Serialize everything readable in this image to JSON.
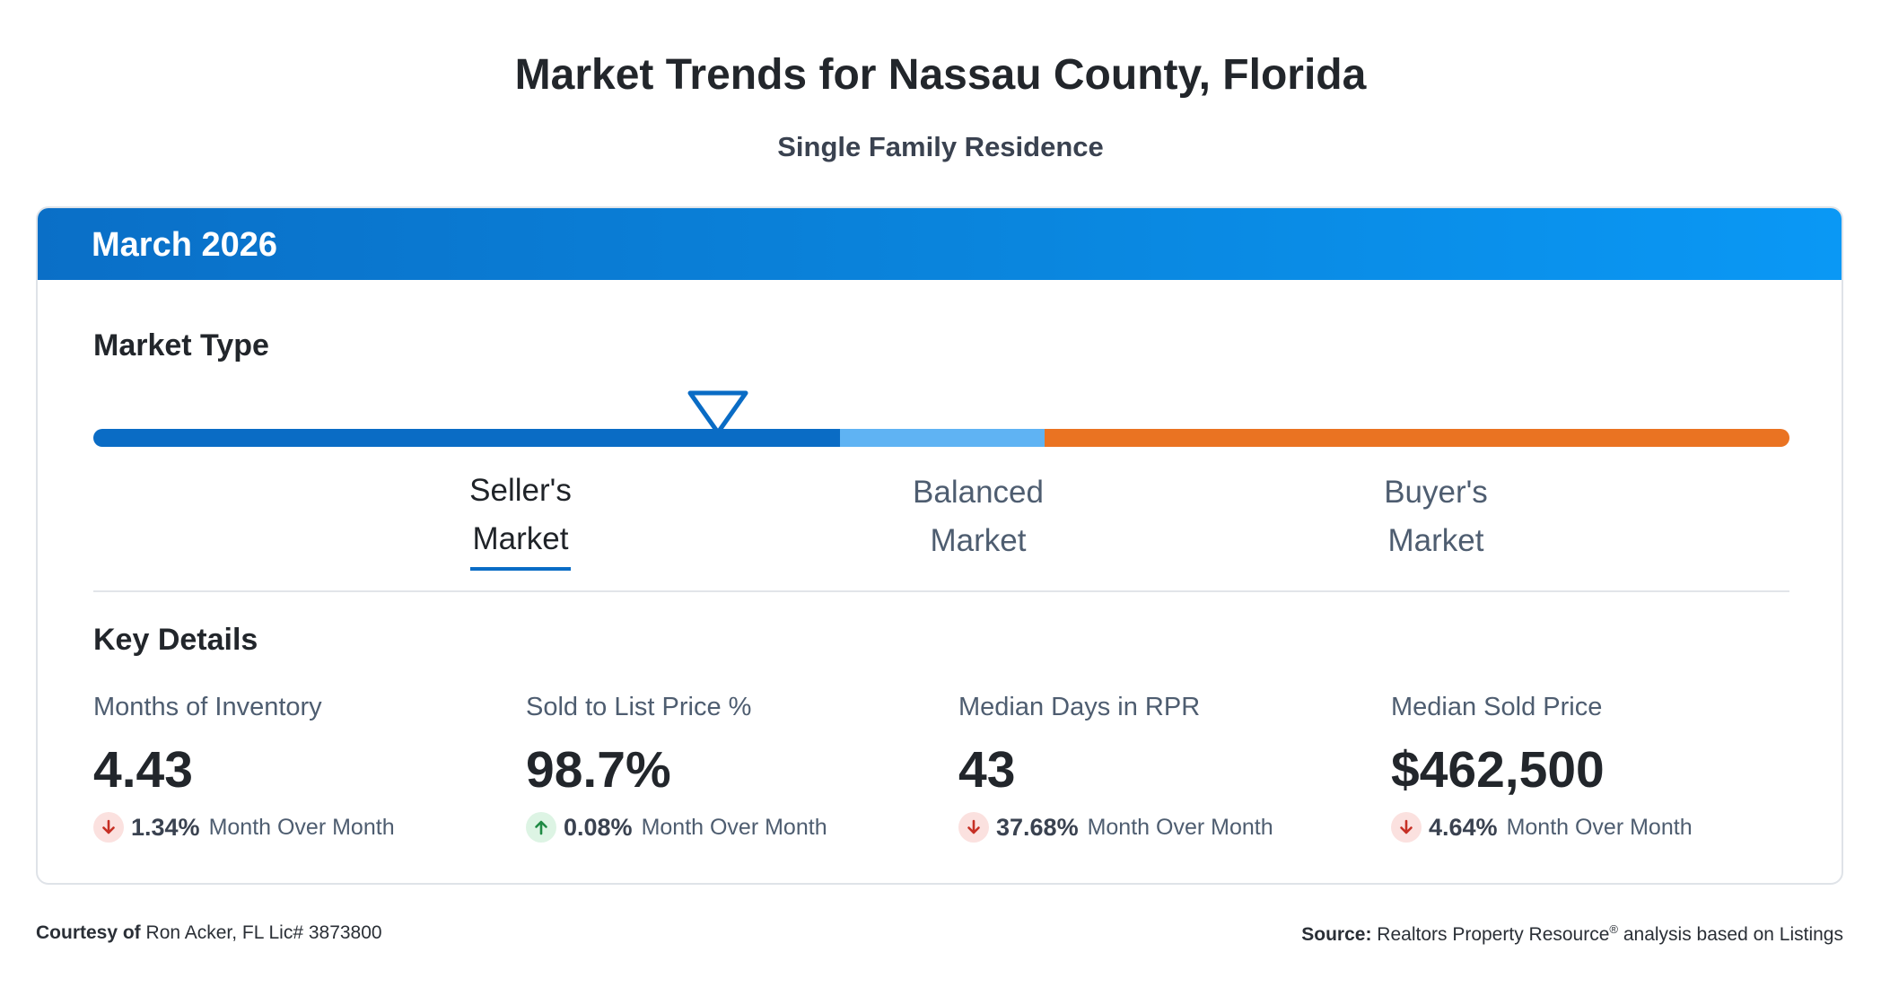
{
  "page": {
    "title": "Market Trends for Nassau County, Florida",
    "subtitle": "Single Family Residence"
  },
  "card": {
    "period": "March 2026",
    "header_gradient": [
      "#0a6fc7",
      "#0a98f5"
    ]
  },
  "market_type": {
    "title": "Market Type",
    "segments": [
      {
        "name": "Seller's Market",
        "color": "#0a6cc5"
      },
      {
        "name": "Balanced Market",
        "color": "#5fb3f3"
      },
      {
        "name": "Buyer's Market",
        "color": "#ea7322"
      }
    ],
    "labels": {
      "seller_line1": "Seller's",
      "seller_line2": "Market",
      "balanced_line1": "Balanced",
      "balanced_line2": "Market",
      "buyer_line1": "Buyer's",
      "buyer_line2": "Market"
    },
    "selected": "Seller's Market",
    "indicator_position_fraction": 0.368
  },
  "key_details": {
    "title": "Key Details",
    "metrics": [
      {
        "label": "Months of Inventory",
        "value": "4.43",
        "change_pct": "1.34%",
        "direction": "down",
        "change_text": "Month Over Month"
      },
      {
        "label": "Sold to List Price %",
        "value": "98.7%",
        "change_pct": "0.08%",
        "direction": "up",
        "change_text": "Month Over Month"
      },
      {
        "label": "Median Days in RPR",
        "value": "43",
        "change_pct": "37.68%",
        "direction": "down",
        "change_text": "Month Over Month"
      },
      {
        "label": "Median Sold Price",
        "value": "$462,500",
        "change_pct": "4.64%",
        "direction": "down",
        "change_text": "Month Over Month"
      }
    ]
  },
  "footer": {
    "courtesy_label": "Courtesy of",
    "courtesy_text": "Ron Acker, FL Lic# 3873800",
    "source_label": "Source:",
    "source_text_pre": "Realtors Property Resource",
    "source_registered": "®",
    "source_text_post": " analysis based on Listings"
  },
  "icons": {
    "down": "arrow-down-icon",
    "up": "arrow-up-icon",
    "marker": "triangle-indicator-icon"
  }
}
